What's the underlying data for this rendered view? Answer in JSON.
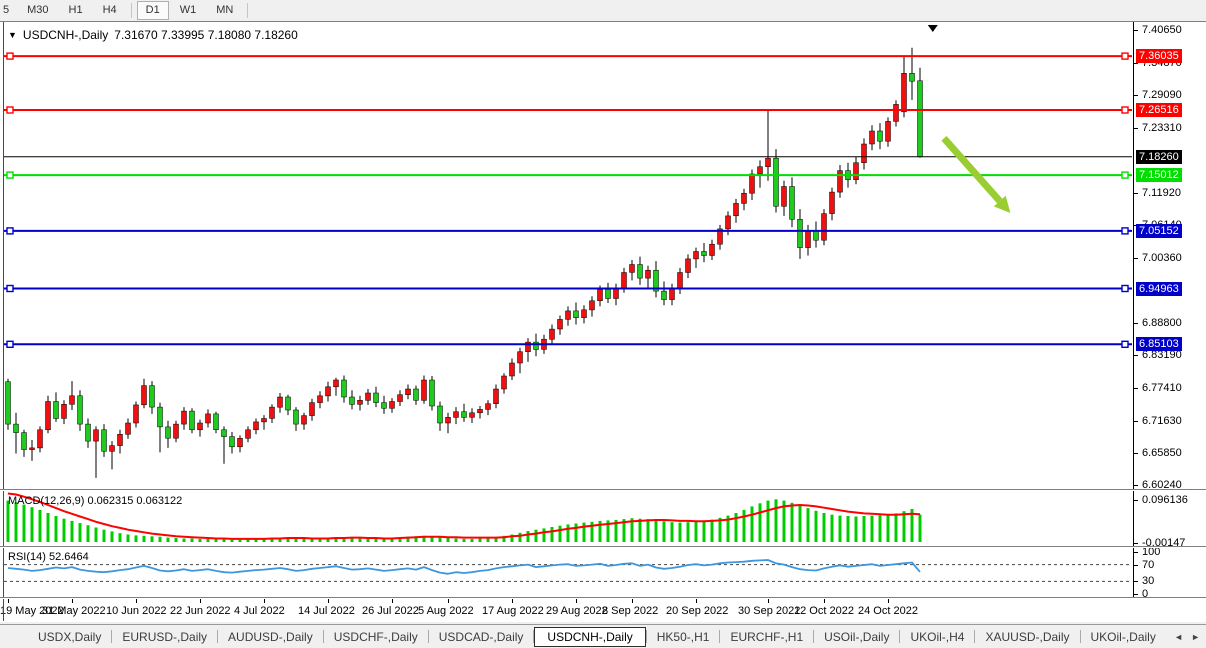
{
  "toolbar": {
    "timeframes": [
      "5",
      "M30",
      "H1",
      "H4",
      "D1",
      "W1",
      "MN"
    ],
    "active": "D1"
  },
  "chart_header": {
    "symbol_label": "USDCNH-,Daily",
    "ohlc": "7.31670 7.33995 7.18080 7.18260"
  },
  "indicators": {
    "macd_label": "MACD(12,26,9) 0.062315 0.063122",
    "rsi_label": "RSI(14) 52.6464"
  },
  "tabs": {
    "items": [
      "USDX,Daily",
      "EURUSD-,Daily",
      "AUDUSD-,Daily",
      "USDCHF-,Daily",
      "USDCAD-,Daily",
      "USDCNH-,Daily",
      "HK50-,H1",
      "EURCHF-,H1",
      "USOil-,Daily",
      "UKOil-,H4",
      "XAUUSD-,Daily",
      "UKOil-,Daily"
    ],
    "active_index": 5,
    "scroll_left": "◄",
    "scroll_right": "►"
  },
  "chart_data": [
    {
      "type": "candlestick",
      "symbol": "USDCNH-",
      "timeframe": "Daily",
      "last_ohlc": {
        "open": 7.3167,
        "high": 7.33995,
        "low": 7.1808,
        "close": 7.1826
      },
      "up_color": "#F01010",
      "down_color": "#1FCB1F",
      "wick_color": "#000000",
      "ylim": [
        6.6024,
        7.4065
      ],
      "y_ticks": [
        "7.40650",
        "7.34870",
        "7.29090",
        "7.23310",
        "7.11920",
        "7.06140",
        "7.00360",
        "6.88800",
        "6.83190",
        "6.77410",
        "6.71630",
        "6.65850",
        "6.60240"
      ],
      "levels": [
        {
          "value": 7.36035,
          "color": "#FF0000",
          "width": 2
        },
        {
          "value": 7.26516,
          "color": "#FF0000",
          "width": 2
        },
        {
          "value": 7.1826,
          "color": "#000000",
          "width": 1
        },
        {
          "value": 7.15012,
          "color": "#00DF00",
          "width": 2
        },
        {
          "value": 7.05152,
          "color": "#0000C8",
          "width": 2
        },
        {
          "value": 6.94963,
          "color": "#0000C8",
          "width": 2
        },
        {
          "value": 6.85103,
          "color": "#0000C8",
          "width": 2
        }
      ],
      "x_labels": [
        "19 May 2022",
        "31 May 2022",
        "10 Jun 2022",
        "22 Jun 2022",
        "4 Jul 2022",
        "14 Jul 2022",
        "26 Jul 2022",
        "5 Aug 2022",
        "17 Aug 2022",
        "29 Aug 2022",
        "8 Sep 2022",
        "20 Sep 2022",
        "30 Sep 2022",
        "12 Oct 2022",
        "24 Oct 2022"
      ],
      "x_label_indices": [
        0,
        8,
        16,
        24,
        32,
        40,
        48,
        55,
        63,
        71,
        78,
        86,
        95,
        102,
        110
      ],
      "annotation_arrow": {
        "from_index": 117.0,
        "from_price": 7.215,
        "to_index": 125.3,
        "to_price": 7.083,
        "color": "#9ACD32"
      },
      "shift_marker_index": 115.6,
      "candles": [
        [
          6.785,
          6.79,
          6.7,
          6.71
        ],
        [
          6.71,
          6.73,
          6.658,
          6.695
        ],
        [
          6.695,
          6.7,
          6.652,
          6.665
        ],
        [
          6.665,
          6.682,
          6.645,
          6.668
        ],
        [
          6.668,
          6.706,
          6.66,
          6.7
        ],
        [
          6.7,
          6.76,
          6.694,
          6.75
        ],
        [
          6.75,
          6.766,
          6.714,
          6.72
        ],
        [
          6.72,
          6.752,
          6.71,
          6.745
        ],
        [
          6.745,
          6.786,
          6.735,
          6.76
        ],
        [
          6.76,
          6.77,
          6.698,
          6.71
        ],
        [
          6.71,
          6.72,
          6.668,
          6.68
        ],
        [
          6.68,
          6.706,
          6.615,
          6.7
        ],
        [
          6.7,
          6.71,
          6.652,
          6.662
        ],
        [
          6.662,
          6.68,
          6.63,
          6.672
        ],
        [
          6.672,
          6.7,
          6.658,
          6.692
        ],
        [
          6.692,
          6.72,
          6.684,
          6.712
        ],
        [
          6.712,
          6.75,
          6.704,
          6.744
        ],
        [
          6.744,
          6.79,
          6.738,
          6.778
        ],
        [
          6.778,
          6.786,
          6.728,
          6.74
        ],
        [
          6.74,
          6.748,
          6.66,
          6.705
        ],
        [
          6.705,
          6.716,
          6.668,
          6.685
        ],
        [
          6.685,
          6.716,
          6.678,
          6.71
        ],
        [
          6.71,
          6.74,
          6.7,
          6.733
        ],
        [
          6.733,
          6.738,
          6.694,
          6.7
        ],
        [
          6.7,
          6.718,
          6.688,
          6.712
        ],
        [
          6.712,
          6.736,
          6.704,
          6.728
        ],
        [
          6.728,
          6.732,
          6.694,
          6.7
        ],
        [
          6.7,
          6.706,
          6.64,
          6.688
        ],
        [
          6.688,
          6.696,
          6.658,
          6.67
        ],
        [
          6.67,
          6.69,
          6.66,
          6.685
        ],
        [
          6.685,
          6.706,
          6.678,
          6.7
        ],
        [
          6.7,
          6.72,
          6.692,
          6.714
        ],
        [
          6.714,
          6.726,
          6.7,
          6.72
        ],
        [
          6.72,
          6.745,
          6.712,
          6.74
        ],
        [
          6.74,
          6.765,
          6.73,
          6.758
        ],
        [
          6.758,
          6.762,
          6.726,
          6.735
        ],
        [
          6.735,
          6.74,
          6.698,
          6.71
        ],
        [
          6.71,
          6.73,
          6.7,
          6.725
        ],
        [
          6.725,
          6.755,
          6.716,
          6.748
        ],
        [
          6.748,
          6.768,
          6.738,
          6.76
        ],
        [
          6.76,
          6.785,
          6.75,
          6.776
        ],
        [
          6.776,
          6.792,
          6.76,
          6.788
        ],
        [
          6.788,
          6.796,
          6.748,
          6.758
        ],
        [
          6.758,
          6.77,
          6.736,
          6.745
        ],
        [
          6.745,
          6.76,
          6.734,
          6.752
        ],
        [
          6.752,
          6.772,
          6.744,
          6.765
        ],
        [
          6.765,
          6.776,
          6.74,
          6.748
        ],
        [
          6.748,
          6.76,
          6.728,
          6.738
        ],
        [
          6.738,
          6.756,
          6.73,
          6.75
        ],
        [
          6.75,
          6.77,
          6.742,
          6.762
        ],
        [
          6.762,
          6.78,
          6.754,
          6.772
        ],
        [
          6.772,
          6.778,
          6.744,
          6.752
        ],
        [
          6.752,
          6.796,
          6.746,
          6.788
        ],
        [
          6.788,
          6.795,
          6.734,
          6.742
        ],
        [
          6.742,
          6.75,
          6.698,
          6.712
        ],
        [
          6.712,
          6.73,
          6.694,
          6.722
        ],
        [
          6.722,
          6.74,
          6.71,
          6.732
        ],
        [
          6.732,
          6.746,
          6.714,
          6.722
        ],
        [
          6.722,
          6.738,
          6.712,
          6.73
        ],
        [
          6.73,
          6.742,
          6.72,
          6.736
        ],
        [
          6.736,
          6.752,
          6.726,
          6.746
        ],
        [
          6.746,
          6.78,
          6.738,
          6.772
        ],
        [
          6.772,
          6.8,
          6.764,
          6.795
        ],
        [
          6.795,
          6.826,
          6.788,
          6.818
        ],
        [
          6.818,
          6.845,
          6.8,
          6.838
        ],
        [
          6.838,
          6.862,
          6.82,
          6.855
        ],
        [
          6.855,
          6.87,
          6.83,
          6.842
        ],
        [
          6.842,
          6.868,
          6.834,
          6.86
        ],
        [
          6.86,
          6.886,
          6.85,
          6.878
        ],
        [
          6.878,
          6.902,
          6.868,
          6.895
        ],
        [
          6.895,
          6.918,
          6.884,
          6.91
        ],
        [
          6.91,
          6.925,
          6.886,
          6.898
        ],
        [
          6.898,
          6.92,
          6.888,
          6.912
        ],
        [
          6.912,
          6.936,
          6.9,
          6.928
        ],
        [
          6.928,
          6.955,
          6.918,
          6.948
        ],
        [
          6.948,
          6.96,
          6.924,
          6.932
        ],
        [
          6.932,
          6.958,
          6.92,
          6.95
        ],
        [
          6.95,
          6.986,
          6.942,
          6.978
        ],
        [
          6.978,
          7.0,
          6.964,
          6.992
        ],
        [
          6.992,
          7.006,
          6.956,
          6.968
        ],
        [
          6.968,
          6.99,
          6.95,
          6.982
        ],
        [
          6.982,
          6.998,
          6.934,
          6.945
        ],
        [
          6.945,
          6.962,
          6.92,
          6.93
        ],
        [
          6.93,
          6.958,
          6.92,
          6.95
        ],
        [
          6.95,
          6.986,
          6.94,
          6.978
        ],
        [
          6.978,
          7.01,
          6.968,
          7.002
        ],
        [
          7.002,
          7.022,
          6.986,
          7.015
        ],
        [
          7.015,
          7.03,
          6.996,
          7.008
        ],
        [
          7.008,
          7.036,
          7.0,
          7.028
        ],
        [
          7.028,
          7.062,
          7.018,
          7.055
        ],
        [
          7.055,
          7.086,
          7.044,
          7.078
        ],
        [
          7.078,
          7.108,
          7.066,
          7.1
        ],
        [
          7.1,
          7.126,
          7.088,
          7.118
        ],
        [
          7.118,
          7.16,
          7.106,
          7.152
        ],
        [
          7.152,
          7.176,
          7.128,
          7.165
        ],
        [
          7.165,
          7.265,
          7.14,
          7.18
        ],
        [
          7.18,
          7.196,
          7.084,
          7.095
        ],
        [
          7.095,
          7.14,
          7.078,
          7.13
        ],
        [
          7.13,
          7.146,
          7.058,
          7.072
        ],
        [
          7.072,
          7.09,
          7.002,
          7.022
        ],
        [
          7.022,
          7.062,
          7.008,
          7.052
        ],
        [
          7.052,
          7.068,
          7.022,
          7.035
        ],
        [
          7.035,
          7.09,
          7.026,
          7.082
        ],
        [
          7.082,
          7.128,
          7.07,
          7.12
        ],
        [
          7.12,
          7.168,
          7.11,
          7.158
        ],
        [
          7.158,
          7.172,
          7.128,
          7.142
        ],
        [
          7.142,
          7.182,
          7.134,
          7.172
        ],
        [
          7.172,
          7.215,
          7.16,
          7.205
        ],
        [
          7.205,
          7.238,
          7.194,
          7.228
        ],
        [
          7.228,
          7.242,
          7.196,
          7.21
        ],
        [
          7.21,
          7.252,
          7.2,
          7.245
        ],
        [
          7.245,
          7.282,
          7.236,
          7.275
        ],
        [
          7.262,
          7.362,
          7.252,
          7.33
        ],
        [
          7.33,
          7.375,
          7.283,
          7.316
        ],
        [
          7.3167,
          7.33995,
          7.1808,
          7.1826
        ]
      ]
    },
    {
      "type": "bar",
      "name": "MACD",
      "params": "12,26,9",
      "current_macd": 0.062315,
      "current_signal": 0.063122,
      "hist_color": "#00CC00",
      "signal_color": "#FF0000",
      "y_labels": [
        "0.096136",
        "-0.00147"
      ],
      "y_label_values": [
        0.096136,
        -0.00147
      ],
      "hist": [
        0.094,
        0.09,
        0.085,
        0.079,
        0.073,
        0.066,
        0.059,
        0.053,
        0.048,
        0.043,
        0.038,
        0.033,
        0.028,
        0.024,
        0.02,
        0.017,
        0.015,
        0.014,
        0.013,
        0.012,
        0.01,
        0.009,
        0.008,
        0.008,
        0.007,
        0.007,
        0.006,
        0.006,
        0.005,
        0.005,
        0.006,
        0.007,
        0.008,
        0.009,
        0.01,
        0.01,
        0.009,
        0.008,
        0.008,
        0.009,
        0.01,
        0.011,
        0.011,
        0.01,
        0.009,
        0.008,
        0.007,
        0.007,
        0.008,
        0.01,
        0.012,
        0.013,
        0.014,
        0.013,
        0.011,
        0.009,
        0.008,
        0.007,
        0.007,
        0.008,
        0.009,
        0.011,
        0.014,
        0.017,
        0.021,
        0.025,
        0.028,
        0.031,
        0.034,
        0.037,
        0.04,
        0.042,
        0.044,
        0.046,
        0.048,
        0.049,
        0.05,
        0.052,
        0.054,
        0.053,
        0.052,
        0.05,
        0.047,
        0.045,
        0.044,
        0.045,
        0.047,
        0.048,
        0.051,
        0.055,
        0.06,
        0.066,
        0.073,
        0.081,
        0.088,
        0.094,
        0.097,
        0.094,
        0.089,
        0.083,
        0.077,
        0.071,
        0.066,
        0.062,
        0.06,
        0.059,
        0.058,
        0.059,
        0.06,
        0.061,
        0.062,
        0.065,
        0.07,
        0.075,
        0.0623
      ],
      "signal": [
        0.112,
        0.108,
        0.103,
        0.097,
        0.091,
        0.084,
        0.077,
        0.07,
        0.064,
        0.058,
        0.052,
        0.046,
        0.041,
        0.036,
        0.032,
        0.028,
        0.025,
        0.022,
        0.019,
        0.017,
        0.015,
        0.013,
        0.012,
        0.011,
        0.01,
        0.009,
        0.008,
        0.008,
        0.007,
        0.007,
        0.007,
        0.007,
        0.007,
        0.008,
        0.008,
        0.009,
        0.009,
        0.009,
        0.008,
        0.008,
        0.008,
        0.009,
        0.009,
        0.01,
        0.01,
        0.009,
        0.009,
        0.008,
        0.008,
        0.009,
        0.01,
        0.011,
        0.012,
        0.012,
        0.012,
        0.011,
        0.011,
        0.01,
        0.01,
        0.01,
        0.01,
        0.01,
        0.011,
        0.013,
        0.014,
        0.017,
        0.019,
        0.022,
        0.024,
        0.027,
        0.03,
        0.032,
        0.035,
        0.037,
        0.039,
        0.041,
        0.043,
        0.045,
        0.047,
        0.048,
        0.049,
        0.05,
        0.05,
        0.049,
        0.048,
        0.048,
        0.047,
        0.047,
        0.048,
        0.049,
        0.051,
        0.054,
        0.058,
        0.062,
        0.067,
        0.072,
        0.077,
        0.081,
        0.083,
        0.084,
        0.083,
        0.081,
        0.078,
        0.075,
        0.072,
        0.069,
        0.067,
        0.065,
        0.064,
        0.063,
        0.062,
        0.062,
        0.063,
        0.064,
        0.0631
      ]
    },
    {
      "type": "line",
      "name": "RSI",
      "period": 14,
      "current": 52.6464,
      "line_color": "#3E97DE",
      "overbought_oversold_levels": [
        70,
        30
      ],
      "y_labels": [
        "100",
        "70",
        "30",
        "0"
      ],
      "y_label_values": [
        100,
        70,
        30,
        0
      ],
      "values": [
        62,
        60,
        58,
        55,
        57,
        60,
        63,
        61,
        64,
        58,
        55,
        53,
        52,
        54,
        57,
        59,
        63,
        67,
        62,
        56,
        54,
        56,
        59,
        55,
        57,
        59,
        55,
        52,
        51,
        53,
        55,
        57,
        58,
        60,
        62,
        59,
        55,
        57,
        60,
        62,
        64,
        66,
        62,
        58,
        59,
        61,
        58,
        55,
        57,
        59,
        61,
        58,
        64,
        57,
        51,
        48,
        52,
        50,
        52,
        55,
        57,
        61,
        64,
        66,
        68,
        70,
        64,
        66,
        68,
        70,
        71,
        67,
        68,
        70,
        72,
        67,
        69,
        72,
        73,
        67,
        70,
        63,
        60,
        62,
        65,
        69,
        71,
        68,
        70,
        73,
        75,
        76,
        77,
        79,
        80,
        81,
        73,
        70,
        64,
        59,
        57,
        56,
        61,
        65,
        68,
        65,
        67,
        69,
        71,
        67,
        69,
        71,
        73,
        75,
        52.6
      ]
    }
  ]
}
